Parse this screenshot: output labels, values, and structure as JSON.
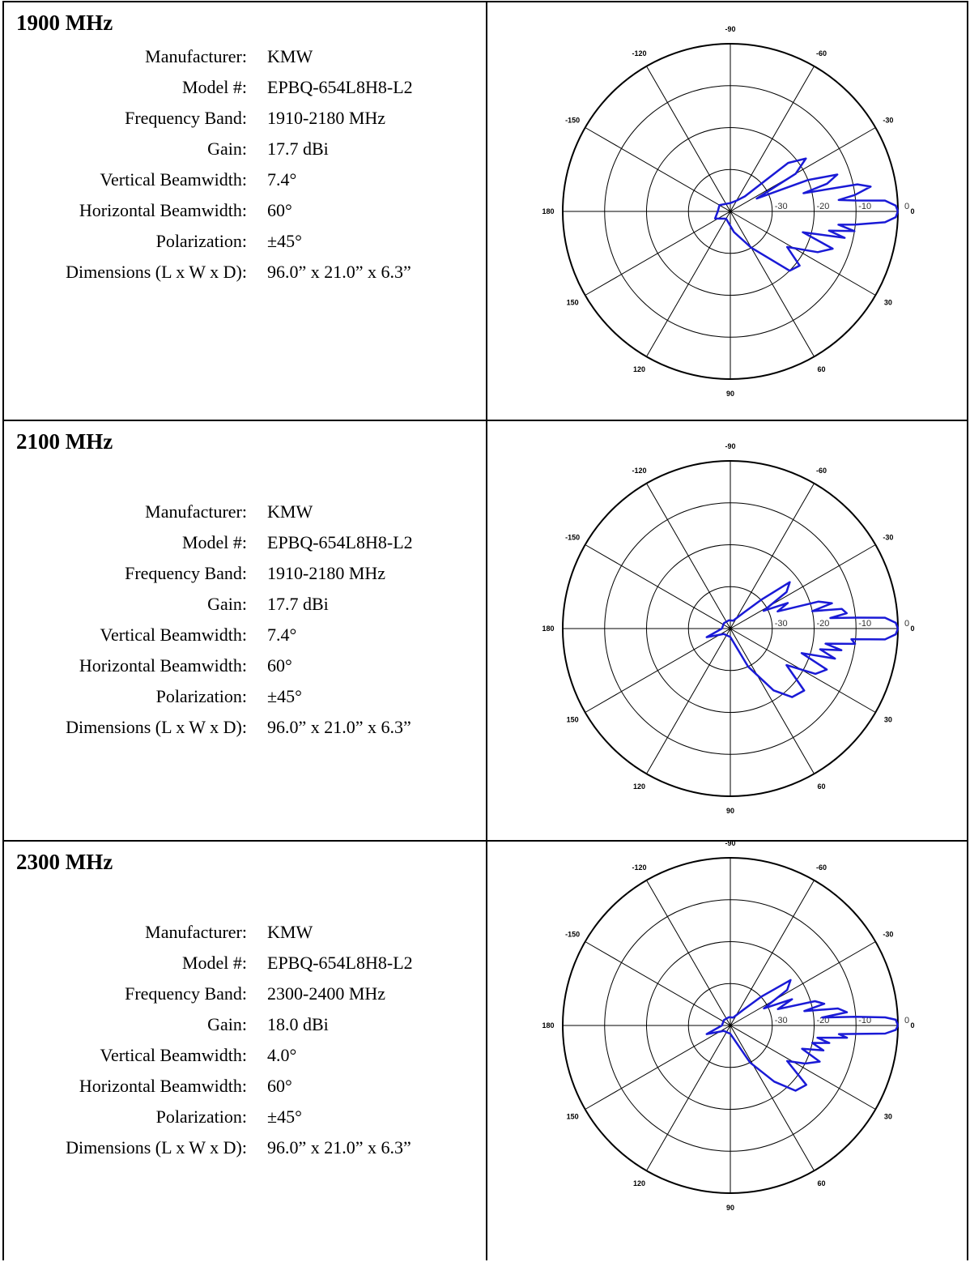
{
  "panels": [
    {
      "band": "1900 MHz",
      "specs": [
        {
          "label": "Manufacturer:",
          "value": "KMW"
        },
        {
          "label": "Model #:",
          "value": "EPBQ-654L8H8-L2"
        },
        {
          "label": "Frequency Band:",
          "value": "1910-2180 MHz"
        },
        {
          "label": "Gain:",
          "value": "17.7 dBi"
        },
        {
          "label": "Vertical Beamwidth:",
          "value": "7.4°"
        },
        {
          "label": "Horizontal Beamwidth:",
          "value": "60°"
        },
        {
          "label": "Polarization:",
          "value": "±45°"
        },
        {
          "label": "Dimensions (L x W x D):",
          "value": "96.0” x 21.0” x 6.3”"
        }
      ]
    },
    {
      "band": "2100 MHz",
      "specs": [
        {
          "label": "Manufacturer:",
          "value": "KMW"
        },
        {
          "label": "Model #:",
          "value": "EPBQ-654L8H8-L2"
        },
        {
          "label": "Frequency Band:",
          "value": "1910-2180 MHz"
        },
        {
          "label": "Gain:",
          "value": "17.7 dBi"
        },
        {
          "label": "Vertical Beamwidth:",
          "value": "7.4°"
        },
        {
          "label": "Horizontal Beamwidth:",
          "value": "60°"
        },
        {
          "label": "Polarization:",
          "value": "±45°"
        },
        {
          "label": "Dimensions (L x W x D):",
          "value": "96.0” x 21.0” x 6.3”"
        }
      ]
    },
    {
      "band": "2300 MHz",
      "specs": [
        {
          "label": "Manufacturer:",
          "value": "KMW"
        },
        {
          "label": "Model #:",
          "value": "EPBQ-654L8H8-L2"
        },
        {
          "label": "Frequency Band:",
          "value": "2300-2400 MHz"
        },
        {
          "label": "Gain:",
          "value": "18.0 dBi"
        },
        {
          "label": "Vertical Beamwidth:",
          "value": "4.0°"
        },
        {
          "label": "Horizontal Beamwidth:",
          "value": "60°"
        },
        {
          "label": "Polarization:",
          "value": "±45°"
        },
        {
          "label": "Dimensions (L x W x D):",
          "value": "96.0” x 21.0” x 6.3”"
        }
      ]
    }
  ],
  "chart_data": [
    {
      "type": "polar",
      "angle_labels": [
        "-90",
        "-60",
        "-30",
        "0",
        "30",
        "60",
        "90",
        "120",
        "150",
        "180",
        "-150",
        "-120"
      ],
      "ring_labels": [
        "-30",
        "-20",
        "-10",
        "0"
      ],
      "rlim": [
        -40,
        0
      ],
      "line_color": "#1a1ad6",
      "pattern": [
        {
          "angle": 0,
          "db": 0
        },
        {
          "angle": -2,
          "db": -0.5
        },
        {
          "angle": -4,
          "db": -3
        },
        {
          "angle": -5,
          "db": -10
        },
        {
          "angle": -6,
          "db": -14
        },
        {
          "angle": -7.5,
          "db": -10
        },
        {
          "angle": -10,
          "db": -6
        },
        {
          "angle": -12,
          "db": -9
        },
        {
          "angle": -14,
          "db": -22
        },
        {
          "angle": -16,
          "db": -16
        },
        {
          "angle": -19,
          "db": -13
        },
        {
          "angle": -22,
          "db": -20
        },
        {
          "angle": -26,
          "db": -33
        },
        {
          "angle": -30,
          "db": -22
        },
        {
          "angle": -35,
          "db": -18
        },
        {
          "angle": -40,
          "db": -22
        },
        {
          "angle": -46,
          "db": -35
        },
        {
          "angle": -60,
          "db": -37
        },
        {
          "angle": -90,
          "db": -38
        },
        {
          "angle": -150,
          "db": -37
        },
        {
          "angle": 180,
          "db": -37
        },
        {
          "angle": 155,
          "db": -36
        },
        {
          "angle": 120,
          "db": -38
        },
        {
          "angle": 80,
          "db": -35
        },
        {
          "angle": 60,
          "db": -30
        },
        {
          "angle": 45,
          "db": -20
        },
        {
          "angle": 38,
          "db": -19
        },
        {
          "angle": 32,
          "db": -24
        },
        {
          "angle": 25,
          "db": -17
        },
        {
          "angle": 20,
          "db": -14
        },
        {
          "angle": 16,
          "db": -22
        },
        {
          "angle": 13,
          "db": -12
        },
        {
          "angle": 11,
          "db": -16
        },
        {
          "angle": 9,
          "db": -10
        },
        {
          "angle": 7,
          "db": -14
        },
        {
          "angle": 6,
          "db": -10
        },
        {
          "angle": 4,
          "db": -3
        },
        {
          "angle": 2,
          "db": -0.5
        },
        {
          "angle": 0,
          "db": 0
        }
      ]
    },
    {
      "type": "polar",
      "angle_labels": [
        "-90",
        "-60",
        "-30",
        "0",
        "30",
        "60",
        "90",
        "120",
        "150",
        "180",
        "-150",
        "-120"
      ],
      "ring_labels": [
        "-30",
        "-20",
        "-10",
        "0"
      ],
      "rlim": [
        -40,
        0
      ],
      "line_color": "#1a1ad6",
      "pattern": [
        {
          "angle": 0,
          "db": 0
        },
        {
          "angle": -2,
          "db": -0.5
        },
        {
          "angle": -4,
          "db": -3
        },
        {
          "angle": -5,
          "db": -10
        },
        {
          "angle": -6,
          "db": -16
        },
        {
          "angle": -7.5,
          "db": -12
        },
        {
          "angle": -10,
          "db": -13
        },
        {
          "angle": -12,
          "db": -20
        },
        {
          "angle": -14,
          "db": -15
        },
        {
          "angle": -17,
          "db": -18
        },
        {
          "angle": -20,
          "db": -28
        },
        {
          "angle": -24,
          "db": -25
        },
        {
          "angle": -28,
          "db": -31
        },
        {
          "angle": -33,
          "db": -24
        },
        {
          "angle": -38,
          "db": -22
        },
        {
          "angle": -43,
          "db": -30
        },
        {
          "angle": -50,
          "db": -35
        },
        {
          "angle": -70,
          "db": -38
        },
        {
          "angle": -100,
          "db": -38
        },
        {
          "angle": -140,
          "db": -38
        },
        {
          "angle": 180,
          "db": -38
        },
        {
          "angle": 160,
          "db": -34
        },
        {
          "angle": 140,
          "db": -38
        },
        {
          "angle": 90,
          "db": -38
        },
        {
          "angle": 65,
          "db": -30
        },
        {
          "angle": 55,
          "db": -22
        },
        {
          "angle": 48,
          "db": -18
        },
        {
          "angle": 40,
          "db": -17
        },
        {
          "angle": 33,
          "db": -24
        },
        {
          "angle": 28,
          "db": -17
        },
        {
          "angle": 23,
          "db": -15
        },
        {
          "angle": 19,
          "db": -22
        },
        {
          "angle": 16,
          "db": -14
        },
        {
          "angle": 13,
          "db": -18
        },
        {
          "angle": 11,
          "db": -13
        },
        {
          "angle": 9,
          "db": -17
        },
        {
          "angle": 7,
          "db": -10
        },
        {
          "angle": 5,
          "db": -11
        },
        {
          "angle": 4,
          "db": -3
        },
        {
          "angle": 2,
          "db": -0.5
        },
        {
          "angle": 0,
          "db": 0
        }
      ]
    },
    {
      "type": "polar",
      "angle_labels": [
        "-90",
        "-60",
        "-30",
        "0",
        "30",
        "60",
        "90",
        "120",
        "150",
        "180",
        "-150",
        "-120"
      ],
      "ring_labels": [
        "-30",
        "-20",
        "-10",
        "0"
      ],
      "rlim": [
        -40,
        0
      ],
      "line_color": "#1a1ad6",
      "pattern": [
        {
          "angle": 0,
          "db": 0
        },
        {
          "angle": -2,
          "db": -0.5
        },
        {
          "angle": -3,
          "db": -3
        },
        {
          "angle": -4,
          "db": -10
        },
        {
          "angle": -5,
          "db": -18
        },
        {
          "angle": -6.5,
          "db": -12
        },
        {
          "angle": -9,
          "db": -14
        },
        {
          "angle": -11,
          "db": -22
        },
        {
          "angle": -13,
          "db": -17
        },
        {
          "angle": -16,
          "db": -19
        },
        {
          "angle": -19,
          "db": -28
        },
        {
          "angle": -23,
          "db": -24
        },
        {
          "angle": -27,
          "db": -31
        },
        {
          "angle": -32,
          "db": -24
        },
        {
          "angle": -37,
          "db": -22
        },
        {
          "angle": -43,
          "db": -30
        },
        {
          "angle": -50,
          "db": -35
        },
        {
          "angle": -70,
          "db": -38
        },
        {
          "angle": -100,
          "db": -38
        },
        {
          "angle": -140,
          "db": -38
        },
        {
          "angle": 180,
          "db": -38
        },
        {
          "angle": 160,
          "db": -34
        },
        {
          "angle": 140,
          "db": -38
        },
        {
          "angle": 90,
          "db": -38
        },
        {
          "angle": 62,
          "db": -30
        },
        {
          "angle": 52,
          "db": -23
        },
        {
          "angle": 45,
          "db": -18
        },
        {
          "angle": 38,
          "db": -17
        },
        {
          "angle": 32,
          "db": -24
        },
        {
          "angle": 27,
          "db": -20
        },
        {
          "angle": 22,
          "db": -17
        },
        {
          "angle": 18,
          "db": -22
        },
        {
          "angle": 15,
          "db": -17
        },
        {
          "angle": 12,
          "db": -20
        },
        {
          "angle": 10,
          "db": -16
        },
        {
          "angle": 8,
          "db": -19
        },
        {
          "angle": 6,
          "db": -12
        },
        {
          "angle": 4.5,
          "db": -14
        },
        {
          "angle": 3,
          "db": -3
        },
        {
          "angle": 1.5,
          "db": -0.5
        },
        {
          "angle": 0,
          "db": 0
        }
      ]
    }
  ]
}
